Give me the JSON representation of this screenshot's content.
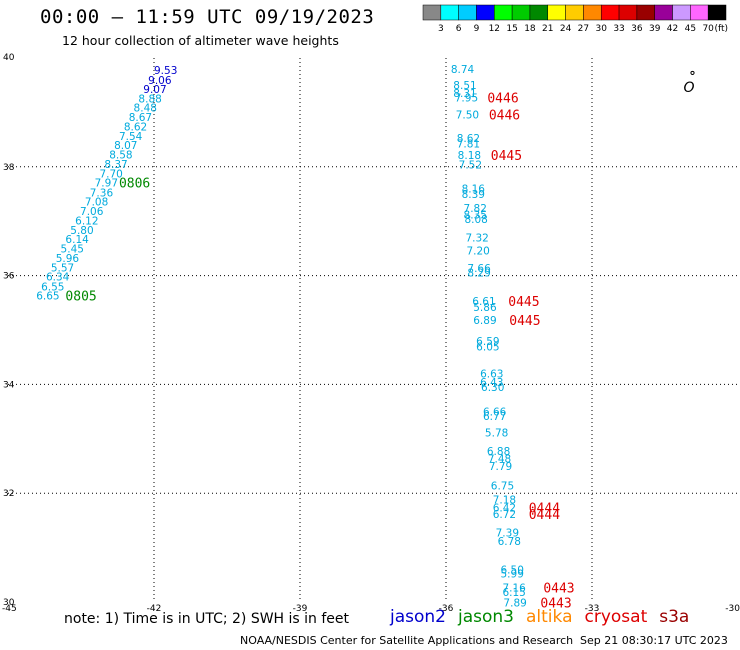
{
  "header": {
    "title": "00:00 – 11:59 UTC 09/19/2023",
    "subtitle": "12 hour collection of altimeter wave heights"
  },
  "footer": {
    "note": "note: 1) Time is in UTC; 2) SWH is in feet",
    "sources": [
      {
        "label": "jason2",
        "color": "#0000cc"
      },
      {
        "label": "jason3",
        "color": "#008800"
      },
      {
        "label": "altika",
        "color": "#ff8800"
      },
      {
        "label": "cryosat",
        "color": "#dd0000"
      },
      {
        "label": "s3a",
        "color": "#990000"
      }
    ],
    "credit": "NOAA/NESDIS Center for Satellite Applications and Research",
    "timestamp": "Sep 21 08:30:17 UTC 2023"
  },
  "colorbar": {
    "ticks": [
      "3",
      "6",
      "9",
      "12",
      "15",
      "18",
      "21",
      "24",
      "27",
      "30",
      "33",
      "36",
      "39",
      "42",
      "45",
      "70"
    ],
    "unit": "(ft)",
    "colors": [
      "#888888",
      "#00ffff",
      "#00ccff",
      "#0000ff",
      "#00ff00",
      "#00cc00",
      "#008800",
      "#ffff00",
      "#ffcc00",
      "#ff8800",
      "#ff0000",
      "#dd0000",
      "#990000",
      "#990099",
      "#cc99ff",
      "#ff66ff",
      "#000000"
    ]
  },
  "chart_data": {
    "type": "scatter",
    "title": "00:00 – 11:59 UTC 09/19/2023",
    "xlim": [
      -45,
      -30
    ],
    "ylim": [
      30,
      40
    ],
    "x_ticks": [
      "-45",
      "-42",
      "-39",
      "-36",
      "-33",
      "-30"
    ],
    "y_ticks": [
      "40",
      "38",
      "36",
      "34",
      "32",
      "30"
    ],
    "grid": true,
    "series": [
      {
        "name": "jason3",
        "points": [
          {
            "lon": -42.0,
            "lat": 39.78,
            "label": "9.53",
            "color": "#0000cc"
          },
          {
            "lon": -42.12,
            "lat": 39.6,
            "label": "9.06",
            "color": "#0000cc"
          },
          {
            "lon": -42.22,
            "lat": 39.43,
            "label": "9.07",
            "color": "#0000cc"
          },
          {
            "lon": -42.32,
            "lat": 39.26,
            "label": "8.88",
            "color": "#00aadd"
          },
          {
            "lon": -42.42,
            "lat": 39.09,
            "label": "8.48",
            "color": "#00aadd"
          },
          {
            "lon": -42.52,
            "lat": 38.92,
            "label": "8.67",
            "color": "#00aadd"
          },
          {
            "lon": -42.62,
            "lat": 38.74,
            "label": "8.62",
            "color": "#00aadd"
          },
          {
            "lon": -42.72,
            "lat": 38.57,
            "label": "7.54",
            "color": "#00aadd"
          },
          {
            "lon": -42.82,
            "lat": 38.4,
            "label": "8.07",
            "color": "#00aadd"
          },
          {
            "lon": -42.92,
            "lat": 38.23,
            "label": "8.58",
            "color": "#00aadd"
          },
          {
            "lon": -43.02,
            "lat": 38.05,
            "label": "8.37",
            "color": "#00aadd"
          },
          {
            "lon": -43.12,
            "lat": 37.88,
            "label": "7.70",
            "color": "#00aadd"
          },
          {
            "lon": -43.22,
            "lat": 37.71,
            "label": "7.97",
            "color": "#00aadd"
          },
          {
            "lon": -43.32,
            "lat": 37.53,
            "label": "7.36",
            "color": "#00aadd"
          },
          {
            "lon": -43.42,
            "lat": 37.36,
            "label": "7.08",
            "color": "#00aadd"
          },
          {
            "lon": -43.52,
            "lat": 37.19,
            "label": "7.06",
            "color": "#00aadd"
          },
          {
            "lon": -43.62,
            "lat": 37.01,
            "label": "6.12",
            "color": "#00aadd"
          },
          {
            "lon": -43.72,
            "lat": 36.84,
            "label": "5.80",
            "color": "#00aadd"
          },
          {
            "lon": -43.82,
            "lat": 36.67,
            "label": "6.14",
            "color": "#00aadd"
          },
          {
            "lon": -43.92,
            "lat": 36.5,
            "label": "5.45",
            "color": "#00aadd"
          },
          {
            "lon": -44.02,
            "lat": 36.32,
            "label": "5.96",
            "color": "#00aadd"
          },
          {
            "lon": -44.12,
            "lat": 36.15,
            "label": "5.57",
            "color": "#00aadd"
          },
          {
            "lon": -44.22,
            "lat": 35.98,
            "label": "6.34",
            "color": "#00aadd"
          },
          {
            "lon": -44.32,
            "lat": 35.8,
            "label": "6.55",
            "color": "#00aadd"
          },
          {
            "lon": -44.42,
            "lat": 35.63,
            "label": "6.65",
            "color": "#00aadd"
          }
        ],
        "time_labels": [
          {
            "lon": -42.72,
            "lat": 37.71,
            "label": "0806"
          },
          {
            "lon": -43.82,
            "lat": 35.63,
            "label": "0805"
          }
        ]
      },
      {
        "name": "cryosat",
        "points": [
          {
            "lon": -35.9,
            "lat": 39.8,
            "label": "8.74"
          },
          {
            "lon": -35.85,
            "lat": 39.5,
            "label": "8.51"
          },
          {
            "lon": -35.85,
            "lat": 39.36,
            "label": "8.31"
          },
          {
            "lon": -35.82,
            "lat": 39.27,
            "label": "7.95"
          },
          {
            "lon": -35.8,
            "lat": 38.96,
            "label": "7.50"
          },
          {
            "lon": -35.78,
            "lat": 38.53,
            "label": "8.62"
          },
          {
            "lon": -35.78,
            "lat": 38.43,
            "label": "7.81"
          },
          {
            "lon": -35.76,
            "lat": 38.22,
            "label": "8.18"
          },
          {
            "lon": -35.74,
            "lat": 38.04,
            "label": "7.52"
          },
          {
            "lon": -35.68,
            "lat": 37.6,
            "label": "8.16"
          },
          {
            "lon": -35.68,
            "lat": 37.5,
            "label": "8.39"
          },
          {
            "lon": -35.64,
            "lat": 37.24,
            "label": "7.82"
          },
          {
            "lon": -35.64,
            "lat": 37.12,
            "label": "8.35"
          },
          {
            "lon": -35.62,
            "lat": 37.04,
            "label": "8.08"
          },
          {
            "lon": -35.6,
            "lat": 36.7,
            "label": "7.32"
          },
          {
            "lon": -35.58,
            "lat": 36.46,
            "label": "7.20"
          },
          {
            "lon": -35.56,
            "lat": 36.14,
            "label": "7.66"
          },
          {
            "lon": -35.56,
            "lat": 36.06,
            "label": "8.29"
          },
          {
            "lon": -35.46,
            "lat": 35.53,
            "label": "6.61"
          },
          {
            "lon": -35.44,
            "lat": 35.42,
            "label": "5.86"
          },
          {
            "lon": -35.44,
            "lat": 35.18,
            "label": "6.89"
          },
          {
            "lon": -35.38,
            "lat": 34.8,
            "label": "6.59"
          },
          {
            "lon": -35.38,
            "lat": 34.7,
            "label": "6.05"
          },
          {
            "lon": -35.3,
            "lat": 34.2,
            "label": "6.63"
          },
          {
            "lon": -35.3,
            "lat": 34.04,
            "label": "6.43"
          },
          {
            "lon": -35.28,
            "lat": 33.95,
            "label": "6.30"
          },
          {
            "lon": -35.24,
            "lat": 33.5,
            "label": "6.66"
          },
          {
            "lon": -35.24,
            "lat": 33.42,
            "label": "6.77"
          },
          {
            "lon": -35.2,
            "lat": 33.12,
            "label": "5.78"
          },
          {
            "lon": -35.16,
            "lat": 32.78,
            "label": "6.88"
          },
          {
            "lon": -35.14,
            "lat": 32.64,
            "label": "7.48"
          },
          {
            "lon": -35.12,
            "lat": 32.5,
            "label": "7.79"
          },
          {
            "lon": -35.08,
            "lat": 32.14,
            "label": "6.75"
          },
          {
            "lon": -35.04,
            "lat": 31.88,
            "label": "7.18"
          },
          {
            "lon": -35.04,
            "lat": 31.74,
            "label": "6.42"
          },
          {
            "lon": -35.04,
            "lat": 31.62,
            "label": "6.72"
          },
          {
            "lon": -34.98,
            "lat": 31.28,
            "label": "7.39"
          },
          {
            "lon": -34.94,
            "lat": 31.12,
            "label": "6.78"
          },
          {
            "lon": -34.88,
            "lat": 30.6,
            "label": "6.50"
          },
          {
            "lon": -34.88,
            "lat": 30.52,
            "label": "5.99"
          },
          {
            "lon": -34.84,
            "lat": 30.27,
            "label": "7.16"
          },
          {
            "lon": -34.84,
            "lat": 30.18,
            "label": "6.15"
          },
          {
            "lon": -34.82,
            "lat": 29.99,
            "label": "7.89"
          }
        ],
        "time_labels": [
          {
            "lon": -35.15,
            "lat": 39.27,
            "label": "0446"
          },
          {
            "lon": -35.12,
            "lat": 38.96,
            "label": "0446"
          },
          {
            "lon": -35.08,
            "lat": 38.22,
            "label": "0445"
          },
          {
            "lon": -34.72,
            "lat": 35.53,
            "label": "0445"
          },
          {
            "lon": -34.7,
            "lat": 35.18,
            "label": "0445"
          },
          {
            "lon": -34.3,
            "lat": 31.74,
            "label": "0444"
          },
          {
            "lon": -34.3,
            "lat": 31.62,
            "label": "0444"
          },
          {
            "lon": -34.0,
            "lat": 30.27,
            "label": "0443"
          },
          {
            "lon": -34.06,
            "lat": 29.99,
            "label": "0443"
          }
        ]
      }
    ],
    "map_features": [
      {
        "type": "island",
        "lon": -31.12,
        "lat": 39.45,
        "label": "O"
      }
    ]
  }
}
